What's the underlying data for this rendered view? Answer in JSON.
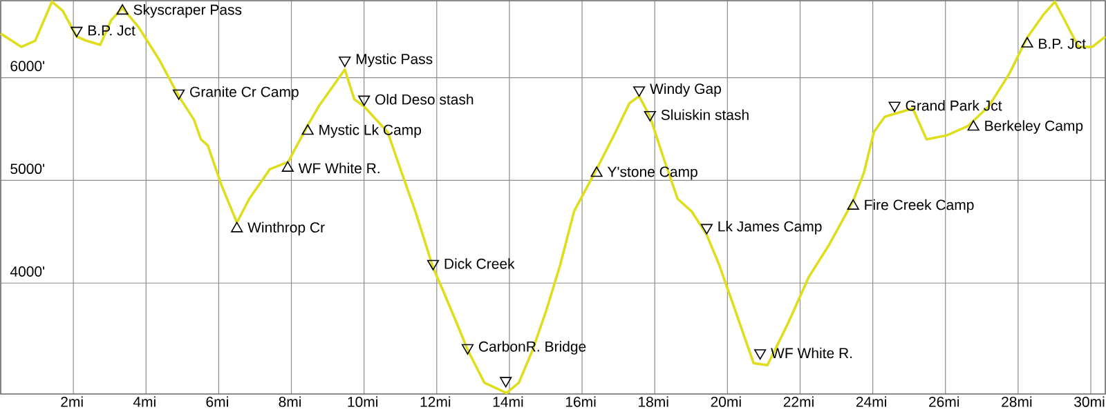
{
  "chart_data": {
    "type": "line",
    "xlim": [
      0,
      30.4
    ],
    "ylim": [
      2920,
      6750
    ],
    "xticks": [
      {
        "value": 2,
        "label": "2mi"
      },
      {
        "value": 4,
        "label": "4mi"
      },
      {
        "value": 6,
        "label": "6mi"
      },
      {
        "value": 8,
        "label": "8mi"
      },
      {
        "value": 10,
        "label": "10mi"
      },
      {
        "value": 12,
        "label": "12mi"
      },
      {
        "value": 14,
        "label": "14mi"
      },
      {
        "value": 16,
        "label": "16mi"
      },
      {
        "value": 18,
        "label": "18mi"
      },
      {
        "value": 20,
        "label": "20mi"
      },
      {
        "value": 22,
        "label": "22mi"
      },
      {
        "value": 24,
        "label": "24mi"
      },
      {
        "value": 26,
        "label": "26mi"
      },
      {
        "value": 28,
        "label": "28mi"
      },
      {
        "value": 30,
        "label": "30mi"
      }
    ],
    "yticks": [
      {
        "value": 4000,
        "label": "4000'"
      },
      {
        "value": 5000,
        "label": "5000'"
      },
      {
        "value": 6000,
        "label": "6000'"
      }
    ],
    "grid": true,
    "series": [
      {
        "color": "#dede1f",
        "marker": "none",
        "x": [
          0,
          0.57,
          0.95,
          1.41,
          1.71,
          2.09,
          2.36,
          2.74,
          3.04,
          3.35,
          3.8,
          4.37,
          4.9,
          5.32,
          5.51,
          5.7,
          6.08,
          6.5,
          6.84,
          7.41,
          7.91,
          8.44,
          8.75,
          9.13,
          9.47,
          9.73,
          10,
          10.65,
          11.03,
          11.41,
          11.9,
          12.17,
          12.55,
          12.85,
          13.31,
          13.92,
          14.26,
          14.64,
          15.02,
          15.4,
          15.78,
          16.16,
          16.43,
          16.92,
          17.3,
          17.57,
          17.87,
          18.25,
          18.63,
          19.01,
          19.43,
          19.77,
          20.15,
          20.72,
          21.1,
          21.67,
          22.24,
          22.81,
          23.46,
          23.76,
          24.03,
          24.33,
          24.71,
          25.1,
          25.48,
          26.05,
          26.62,
          27.19,
          27.76,
          28.25,
          28.71,
          29.01,
          29.28,
          29.66,
          30.04,
          30.4
        ],
        "values": [
          6430,
          6300,
          6360,
          6740,
          6650,
          6400,
          6360,
          6320,
          6560,
          6680,
          6490,
          6170,
          5820,
          5590,
          5400,
          5340,
          4950,
          4590,
          4820,
          5110,
          5180,
          5530,
          5720,
          5910,
          6080,
          5790,
          5720,
          5470,
          5080,
          4700,
          4150,
          3930,
          3610,
          3350,
          3030,
          2930,
          3030,
          3350,
          3740,
          4180,
          4700,
          4950,
          5130,
          5470,
          5750,
          5820,
          5620,
          5210,
          4820,
          4700,
          4470,
          4180,
          3800,
          3220,
          3200,
          3610,
          4060,
          4380,
          4800,
          5080,
          5470,
          5620,
          5660,
          5700,
          5400,
          5440,
          5530,
          5720,
          6040,
          6390,
          6620,
          6740,
          6560,
          6300,
          6300,
          6400
        ]
      },
      {
        "type": "scatter",
        "color": "#000000",
        "marker": "triangle",
        "x": [
          3.35,
          6.5,
          7.9,
          8.45,
          16.4,
          23.46,
          26.77,
          28.25
        ],
        "values": [
          6650,
          4530,
          5120,
          5480,
          5070,
          4750,
          5520,
          6330
        ]
      },
      {
        "type": "scatter",
        "color": "#000000",
        "marker": "triangle down",
        "x": [
          2.09,
          4.9,
          9.47,
          10.0,
          11.9,
          12.85,
          13.9,
          17.57,
          17.87,
          19.43,
          20.9,
          24.6
        ],
        "values": [
          6460,
          5850,
          6170,
          5790,
          4190,
          3370,
          3050,
          5880,
          5640,
          4540,
          3320,
          5730
        ]
      }
    ],
    "annotations": [
      {
        "text": "B.P. Jct",
        "x": 2.09,
        "y": 6460
      },
      {
        "text": "Skyscraper Pass",
        "x": 3.35,
        "y": 6650
      },
      {
        "text": "Granite Cr Camp",
        "x": 4.9,
        "y": 5850
      },
      {
        "text": "Winthrop Cr",
        "x": 6.5,
        "y": 4530
      },
      {
        "text": "WF White R.",
        "x": 7.9,
        "y": 5120
      },
      {
        "text": "Mystic Lk Camp",
        "x": 8.45,
        "y": 5480
      },
      {
        "text": "Mystic Pass",
        "x": 9.47,
        "y": 6170
      },
      {
        "text": "Old Deso stash",
        "x": 10.0,
        "y": 5790
      },
      {
        "text": "Dick Creek",
        "x": 11.9,
        "y": 4190
      },
      {
        "text": "CarbonR. Bridge",
        "x": 12.85,
        "y": 3370
      },
      {
        "text": "Y'stone Camp",
        "x": 16.4,
        "y": 5070
      },
      {
        "text": "Windy Gap",
        "x": 17.57,
        "y": 5880
      },
      {
        "text": "Sluiskin stash",
        "x": 17.87,
        "y": 5640
      },
      {
        "text": "Lk James Camp",
        "x": 19.43,
        "y": 4540
      },
      {
        "text": "WF White R.",
        "x": 20.9,
        "y": 3320
      },
      {
        "text": "Fire Creek Camp",
        "x": 23.46,
        "y": 4750
      },
      {
        "text": "Grand Park Jct",
        "x": 24.6,
        "y": 5730
      },
      {
        "text": "Berkeley Camp",
        "x": 26.77,
        "y": 5520
      },
      {
        "text": "B.P. Jct",
        "x": 28.25,
        "y": 6330
      }
    ]
  }
}
